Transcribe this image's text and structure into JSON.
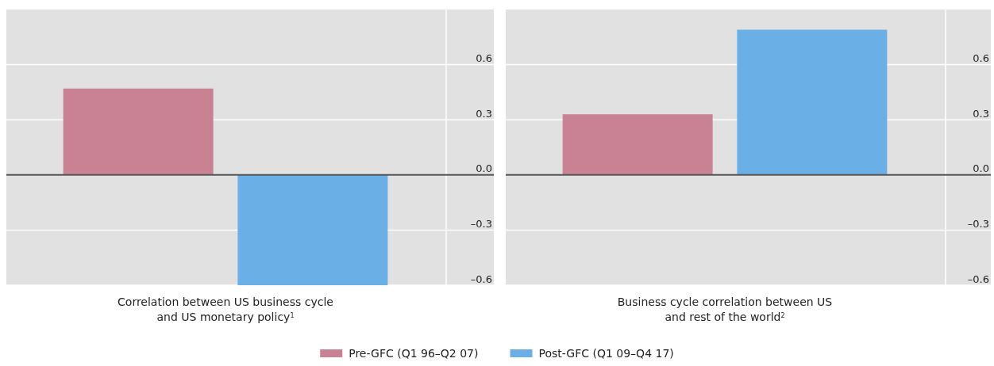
{
  "chart_data": [
    {
      "type": "bar",
      "title": "Correlation between US business cycle and US monetary policy$^{1}$",
      "categories": [
        null
      ],
      "series": [
        {
          "name": "Pre-GFC (Q1 96–Q2 07)",
          "color": "#c98294",
          "values": [
            0.47
          ]
        },
        {
          "name": "Post-GFC (Q1 09–Q4 17)",
          "color": "#6aafe6",
          "values": [
            -0.6
          ]
        }
      ],
      "ylim": [
        -0.6,
        0.9
      ],
      "yticks": [
        {
          "value": -0.6,
          "label": "–0.6"
        },
        {
          "value": -0.3,
          "label": "–0.3"
        },
        {
          "value": 0,
          "label": "0.0"
        },
        {
          "value": 0.3,
          "label": "0.3"
        },
        {
          "value": 0.6,
          "label": "0.6"
        }
      ],
      "grid": "y",
      "legend": "bottom"
    },
    {
      "type": "bar",
      "title": "Business cycle correlation between US and rest of the world$^{2}$",
      "categories": [
        null
      ],
      "series": [
        {
          "color": "#c98294",
          "values": [
            0.33
          ]
        },
        {
          "color": "#6aafe6",
          "values": [
            0.79
          ]
        }
      ],
      "ylim": [
        -0.6,
        0.9
      ],
      "yticks": [
        {
          "value": -0.6,
          "label": "–0.6"
        },
        {
          "value": -0.3,
          "label": "–0.3"
        },
        {
          "value": 0,
          "label": "0.0"
        },
        {
          "value": 0.3,
          "label": "0.3"
        },
        {
          "value": 0.6,
          "label": "0.6"
        }
      ],
      "grid": "y"
    }
  ]
}
